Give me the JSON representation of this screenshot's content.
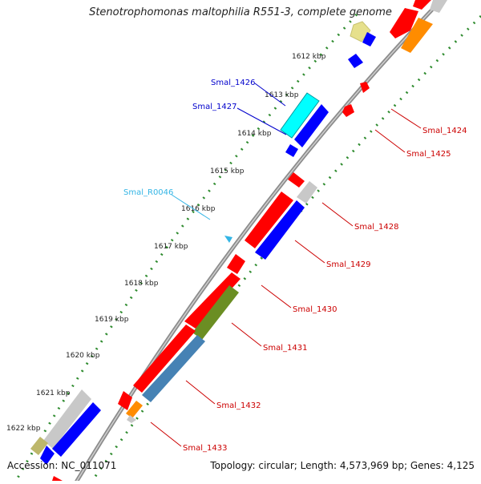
{
  "title": "Stenotrophomonas maltophilia R551-3, complete genome",
  "accession": "Accession: NC_011071",
  "summary": "Topology: circular; Length: 4,573,969 bp; Genes: 4,125",
  "ticks": [
    "1612 kbp",
    "1613 kbp",
    "1614 kbp",
    "1615 kbp",
    "1616 kbp",
    "1617 kbp",
    "1618 kbp",
    "1619 kbp",
    "1620 kbp",
    "1621 kbp",
    "1622 kbp"
  ],
  "labels": {
    "left": [
      {
        "text": "Smal_1426",
        "color": "#0000cc"
      },
      {
        "text": "Smal_1427",
        "color": "#0000cc"
      },
      {
        "text": "Smal_R0046",
        "color": "#33b5e5"
      }
    ],
    "right": [
      {
        "text": "Smal_1424",
        "color": "#cc0000"
      },
      {
        "text": "Smal_1425",
        "color": "#cc0000"
      },
      {
        "text": "Smal_1428",
        "color": "#cc0000"
      },
      {
        "text": "Smal_1429",
        "color": "#cc0000"
      },
      {
        "text": "Smal_1430",
        "color": "#cc0000"
      },
      {
        "text": "Smal_1431",
        "color": "#cc0000"
      },
      {
        "text": "Smal_1432",
        "color": "#cc0000"
      },
      {
        "text": "Smal_1433",
        "color": "#cc0000"
      }
    ]
  },
  "colors": {
    "backbone": "#9a9a9a",
    "tick_dots": "#2e8b2e",
    "red": "#ff0000",
    "blue": "#0000ff",
    "cyan": "#00ffff",
    "olive": "#6b8e23",
    "steel": "#4682b4",
    "orange": "#ff8c00",
    "khaki": "#e6e08c",
    "grey": "#c8c8c8"
  }
}
